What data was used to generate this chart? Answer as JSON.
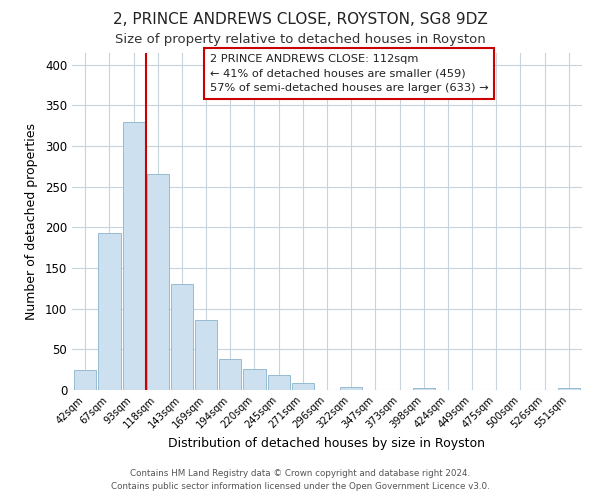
{
  "title": "2, PRINCE ANDREWS CLOSE, ROYSTON, SG8 9DZ",
  "subtitle": "Size of property relative to detached houses in Royston",
  "xlabel": "Distribution of detached houses by size in Royston",
  "ylabel": "Number of detached properties",
  "categories": [
    "42sqm",
    "67sqm",
    "93sqm",
    "118sqm",
    "143sqm",
    "169sqm",
    "194sqm",
    "220sqm",
    "245sqm",
    "271sqm",
    "296sqm",
    "322sqm",
    "347sqm",
    "373sqm",
    "398sqm",
    "424sqm",
    "449sqm",
    "475sqm",
    "500sqm",
    "526sqm",
    "551sqm"
  ],
  "bar_values": [
    25,
    193,
    330,
    265,
    130,
    86,
    38,
    26,
    18,
    9,
    0,
    4,
    0,
    0,
    3,
    0,
    0,
    0,
    0,
    0,
    2
  ],
  "bar_color": "#cce0f0",
  "bar_edge_color": "#8ab4cc",
  "vline_color": "#cc0000",
  "ylim": [
    0,
    415
  ],
  "yticks": [
    0,
    50,
    100,
    150,
    200,
    250,
    300,
    350,
    400
  ],
  "annotation_box_text": "2 PRINCE ANDREWS CLOSE: 112sqm\n← 41% of detached houses are smaller (459)\n57% of semi-detached houses are larger (633) →",
  "footer_line1": "Contains HM Land Registry data © Crown copyright and database right 2024.",
  "footer_line2": "Contains public sector information licensed under the Open Government Licence v3.0.",
  "background_color": "#ffffff",
  "grid_color": "#c8d4dc",
  "title_fontsize": 11,
  "subtitle_fontsize": 9.5,
  "ylabel_text": "Number of detached properties"
}
